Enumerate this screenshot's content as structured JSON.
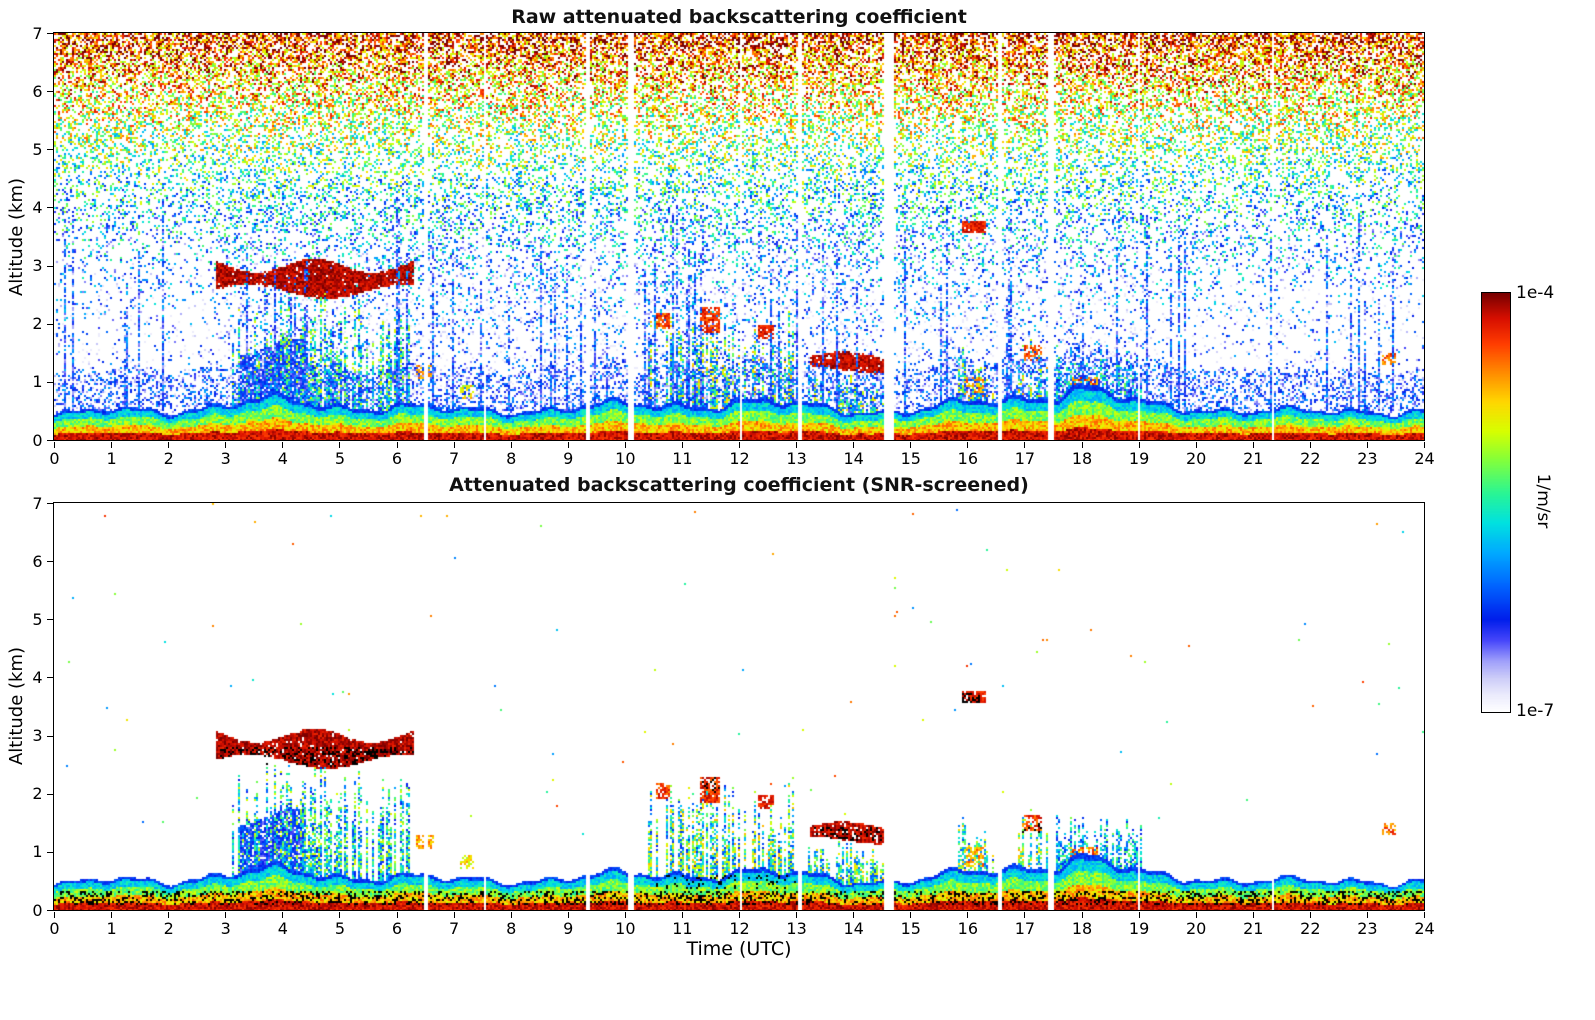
{
  "chart_data": {
    "type": "heatmap",
    "description": "Lidar/ceilometer attenuated backscatter time-height curtain plots; two stacked panels sharing one logarithmic colorbar. Feature v values are normalized colorscale positions: v=0 corresponds to 1e-7 1/m/sr, v=1 corresponds to 1e-4 1/m/sr.",
    "panels": [
      {
        "title": "Raw attenuated backscattering coefficient",
        "screened": false
      },
      {
        "title": "Attenuated backscattering coefficient (SNR-screened)",
        "screened": true
      }
    ],
    "x": {
      "label": "Time (UTC)",
      "range": [
        0,
        24
      ],
      "ticks": [
        0,
        1,
        2,
        3,
        4,
        5,
        6,
        7,
        8,
        9,
        10,
        11,
        12,
        13,
        14,
        15,
        16,
        17,
        18,
        19,
        20,
        21,
        22,
        23,
        24
      ]
    },
    "y": {
      "label": "Altitude (km)",
      "range": [
        0,
        7
      ],
      "ticks": [
        0,
        1,
        2,
        3,
        4,
        5,
        6,
        7
      ]
    },
    "colorbar": {
      "label": "1/m/sr",
      "scale": "log",
      "min": 1e-07,
      "max": 0.0001,
      "min_text": "1e-7",
      "max_text": "1e-4"
    },
    "colormap_stops": [
      [
        0.0,
        255,
        255,
        255
      ],
      [
        0.04,
        235,
        235,
        252
      ],
      [
        0.08,
        205,
        205,
        248
      ],
      [
        0.12,
        160,
        160,
        250
      ],
      [
        0.17,
        70,
        70,
        250
      ],
      [
        0.22,
        0,
        30,
        235
      ],
      [
        0.3,
        0,
        100,
        255
      ],
      [
        0.38,
        0,
        170,
        255
      ],
      [
        0.45,
        0,
        225,
        225
      ],
      [
        0.52,
        40,
        245,
        150
      ],
      [
        0.6,
        130,
        255,
        60
      ],
      [
        0.67,
        215,
        255,
        0
      ],
      [
        0.74,
        255,
        215,
        0
      ],
      [
        0.81,
        255,
        140,
        0
      ],
      [
        0.88,
        255,
        60,
        0
      ],
      [
        0.94,
        215,
        15,
        0
      ],
      [
        1.0,
        120,
        0,
        0
      ]
    ],
    "boundary_layer_height_km_by_hour": [
      0.42,
      0.5,
      0.55,
      0.62,
      0.68,
      0.62,
      0.58,
      0.5,
      0.55,
      0.55,
      0.6,
      0.65,
      0.65,
      0.6,
      0.55,
      0.5,
      0.62,
      0.8,
      0.9,
      0.62,
      0.6,
      0.5,
      0.48,
      0.55,
      0.5
    ],
    "features": [
      {
        "name": "morning-cloud-base-layer",
        "type": "layer",
        "t0": 2.85,
        "t1": 6.3,
        "a0": 2.55,
        "a1": 3.0,
        "v": 0.96,
        "jitter": 0.05,
        "density": 0.95,
        "wave": 0.12
      },
      {
        "name": "morning-blue-fill",
        "type": "layer",
        "t0": 3.25,
        "t1": 4.4,
        "a0": 0.5,
        "a1": 1.6,
        "v": 0.22,
        "jitter": 0.08,
        "density": 0.8,
        "wave": 0.15
      },
      {
        "name": "morning-virga-columns",
        "type": "plume_field",
        "t0": 3.1,
        "t1": 6.25,
        "a0": 0.45,
        "a1": 2.6,
        "v": 0.45,
        "jitter": 0.25,
        "density": 0.6
      },
      {
        "name": "plume-0625",
        "type": "layer",
        "t0": 6.35,
        "t1": 6.65,
        "a0": 1.05,
        "a1": 1.3,
        "v": 0.78,
        "jitter": 0.08,
        "density": 0.7
      },
      {
        "name": "plume-0710",
        "type": "layer",
        "t0": 7.1,
        "t1": 7.35,
        "a0": 0.7,
        "a1": 0.95,
        "v": 0.7,
        "jitter": 0.1,
        "density": 0.6
      },
      {
        "name": "midday-plume-field",
        "type": "plume_field",
        "t0": 10.4,
        "t1": 12.95,
        "a0": 0.45,
        "a1": 2.25,
        "v": 0.5,
        "jitter": 0.28,
        "density": 0.55
      },
      {
        "name": "plume-top-1040",
        "type": "layer",
        "t0": 10.55,
        "t1": 10.8,
        "a0": 1.9,
        "a1": 2.2,
        "v": 0.88,
        "jitter": 0.08,
        "density": 0.75
      },
      {
        "name": "plume-top-1130",
        "type": "layer",
        "t0": 11.3,
        "t1": 11.65,
        "a0": 1.85,
        "a1": 2.3,
        "v": 0.9,
        "jitter": 0.07,
        "density": 0.75
      },
      {
        "name": "red-patch-1230",
        "type": "layer",
        "t0": 12.35,
        "t1": 12.6,
        "a0": 1.75,
        "a1": 1.98,
        "v": 0.92,
        "jitter": 0.05,
        "density": 0.8
      },
      {
        "name": "afternoon-cloud-layer",
        "type": "layer",
        "t0": 13.25,
        "t1": 14.55,
        "a0": 1.2,
        "a1": 1.45,
        "v": 0.95,
        "jitter": 0.05,
        "density": 0.9,
        "wave": 0.07
      },
      {
        "name": "afternoon-fill",
        "type": "plume_field",
        "t0": 13.2,
        "t1": 14.55,
        "a0": 0.4,
        "a1": 1.2,
        "v": 0.5,
        "jitter": 0.25,
        "density": 0.65
      },
      {
        "name": "plume-field-1600",
        "type": "plume_field",
        "t0": 15.75,
        "t1": 16.45,
        "a0": 0.4,
        "a1": 1.6,
        "v": 0.5,
        "jitter": 0.25,
        "density": 0.6
      },
      {
        "name": "orange-core-1600",
        "type": "layer",
        "t0": 15.95,
        "t1": 16.3,
        "a0": 0.75,
        "a1": 1.1,
        "v": 0.78,
        "jitter": 0.1,
        "density": 0.5
      },
      {
        "name": "lofted-layer-1605-3p6km",
        "type": "layer",
        "t0": 15.9,
        "t1": 16.32,
        "a0": 3.55,
        "a1": 3.75,
        "v": 0.92,
        "jitter": 0.05,
        "density": 0.85
      },
      {
        "name": "plume-1700",
        "type": "plume_field",
        "t0": 16.9,
        "t1": 17.4,
        "a0": 0.4,
        "a1": 1.75,
        "v": 0.55,
        "jitter": 0.25,
        "density": 0.65
      },
      {
        "name": "red-top-1700",
        "type": "layer",
        "t0": 17.0,
        "t1": 17.3,
        "a0": 1.35,
        "a1": 1.62,
        "v": 0.88,
        "jitter": 0.08,
        "density": 0.6
      },
      {
        "name": "evening-elevated-aerosol",
        "type": "plume_field",
        "t0": 17.55,
        "t1": 19.05,
        "a0": 0.4,
        "a1": 1.65,
        "v": 0.4,
        "jitter": 0.2,
        "density": 0.75
      },
      {
        "name": "evening-orange-patch",
        "type": "layer",
        "t0": 17.8,
        "t1": 18.3,
        "a0": 0.65,
        "a1": 1.1,
        "v": 0.82,
        "jitter": 0.12,
        "density": 0.55
      },
      {
        "name": "late-plume-2320",
        "type": "layer",
        "t0": 23.28,
        "t1": 23.5,
        "a0": 1.3,
        "a1": 1.48,
        "v": 0.85,
        "jitter": 0.1,
        "density": 0.55
      },
      {
        "name": "raw-noise-columns",
        "type": "plume_field",
        "t0": 0,
        "t1": 24,
        "a0": 0.5,
        "a1": 4.2,
        "v": 0.25,
        "jitter": 0.15,
        "density": 0.12,
        "raw_only": true
      }
    ],
    "data_gaps_utc": [
      {
        "t": 6.52,
        "w": 0.06
      },
      {
        "t": 7.55,
        "w": 0.04
      },
      {
        "t": 9.35,
        "w": 0.05
      },
      {
        "t": 10.1,
        "w": 0.12
      },
      {
        "t": 12.05,
        "w": 0.04
      },
      {
        "t": 13.07,
        "w": 0.05
      },
      {
        "t": 14.62,
        "w": 0.16
      },
      {
        "t": 16.58,
        "w": 0.06
      },
      {
        "t": 17.47,
        "w": 0.09
      },
      {
        "t": 19.0,
        "w": 0.04
      },
      {
        "t": 21.35,
        "w": 0.03
      }
    ],
    "black_overflow_regions": [
      {
        "t0": 0,
        "t1": 24,
        "a0": 0.1,
        "a1": 0.32,
        "density": 0.28
      },
      {
        "t0": 2.9,
        "t1": 6.3,
        "a0": 2.45,
        "a1": 2.8,
        "density": 0.3
      },
      {
        "t0": 13.3,
        "t1": 14.5,
        "a0": 1.18,
        "a1": 1.42,
        "density": 0.3
      },
      {
        "t0": 15.9,
        "t1": 16.3,
        "a0": 3.52,
        "a1": 3.72,
        "density": 0.35
      },
      {
        "t0": 16.95,
        "t1": 17.3,
        "a0": 1.3,
        "a1": 1.58,
        "density": 0.25
      },
      {
        "t0": 11.3,
        "t1": 11.7,
        "a0": 2.0,
        "a1": 2.28,
        "density": 0.25
      },
      {
        "t0": 10.5,
        "t1": 13.0,
        "a0": 0.35,
        "a1": 0.6,
        "density": 0.12
      }
    ],
    "raw_noise": {
      "density_surface": 0.05,
      "density_top": 0.62,
      "alt_exponent": 2.4,
      "daytime_extra_density": 0.07,
      "value_scale": 0.85,
      "value_exponent": 1.6,
      "value_jitter": 0.5,
      "residual_speckle_density": 0.0008
    }
  }
}
